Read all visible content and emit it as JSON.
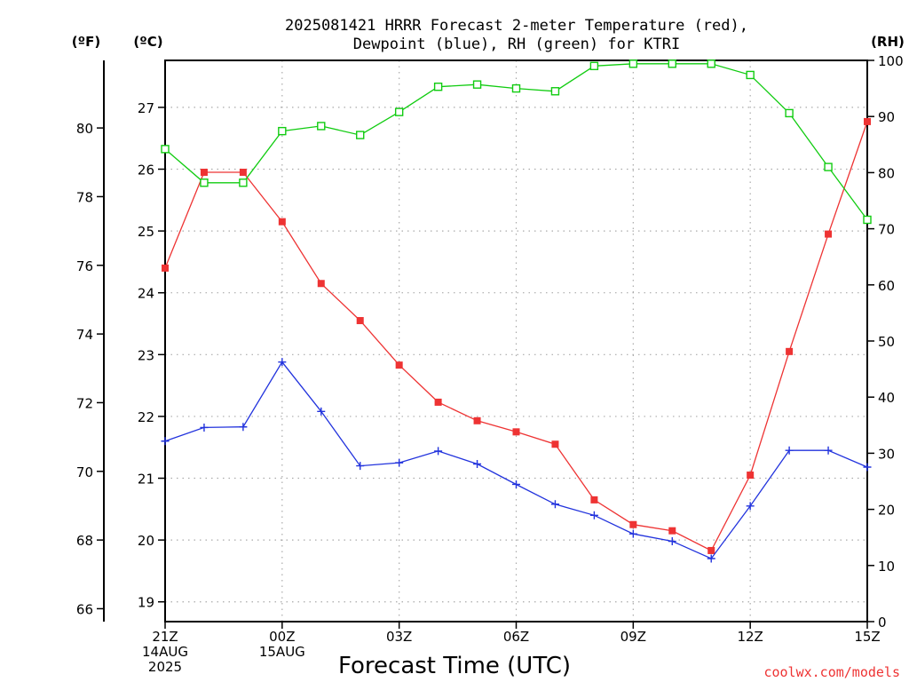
{
  "chart_data": {
    "type": "line",
    "title": [
      "2025081421 HRRR Forecast 2-meter Temperature (red),",
      "Dewpoint (blue), RH (green) for KTRI"
    ],
    "xlabel": "Forecast Time (UTC)",
    "unit_labels": {
      "fahrenheit": "(ºF)",
      "celsius": "(ºC)",
      "rh": "(RH)"
    },
    "credit": "coolwx.com/models",
    "grid": true,
    "x": [
      0,
      1,
      2,
      3,
      4,
      5,
      6,
      7,
      8,
      9,
      10,
      11,
      12,
      13,
      14,
      15,
      16,
      17,
      18
    ],
    "x_ticks": [
      {
        "i": 0,
        "lines": [
          "21Z",
          "14AUG",
          "2025"
        ]
      },
      {
        "i": 3,
        "lines": [
          "00Z",
          "15AUG"
        ]
      },
      {
        "i": 6,
        "lines": [
          "03Z"
        ]
      },
      {
        "i": 9,
        "lines": [
          "06Z"
        ]
      },
      {
        "i": 12,
        "lines": [
          "09Z"
        ]
      },
      {
        "i": 15,
        "lines": [
          "12Z"
        ]
      },
      {
        "i": 18,
        "lines": [
          "15Z"
        ]
      }
    ],
    "y_celsius": {
      "ylim": [
        18.68,
        27.76
      ],
      "ticks": [
        19,
        20,
        21,
        22,
        23,
        24,
        25,
        26,
        27
      ]
    },
    "y_fahrenheit": {
      "ticks": [
        66,
        68,
        70,
        72,
        74,
        76,
        78,
        80
      ]
    },
    "y_rh": {
      "ylim": [
        0,
        100
      ],
      "ticks": [
        0,
        10,
        20,
        30,
        40,
        50,
        60,
        70,
        80,
        90,
        100
      ]
    },
    "series": [
      {
        "name": "Temperature",
        "axis": "celsius",
        "color": "#ee3333",
        "marker": "filled-square",
        "values": [
          24.4,
          25.95,
          25.95,
          25.15,
          24.15,
          23.55,
          22.83,
          22.23,
          21.93,
          21.75,
          21.55,
          20.65,
          20.25,
          20.15,
          19.83,
          21.05,
          23.05,
          24.95,
          26.77
        ]
      },
      {
        "name": "Dewpoint",
        "axis": "celsius",
        "color": "#2233dd",
        "marker": "plus",
        "values": [
          21.6,
          21.82,
          21.83,
          22.88,
          22.08,
          21.2,
          21.25,
          21.44,
          21.23,
          20.9,
          20.58,
          20.4,
          20.1,
          19.98,
          19.7,
          20.55,
          21.45,
          21.45,
          21.18
        ]
      },
      {
        "name": "RH",
        "axis": "rh",
        "color": "#11cc11",
        "marker": "open-square",
        "values": [
          84.2,
          78.2,
          78.2,
          87.4,
          88.3,
          86.7,
          90.8,
          95.3,
          95.7,
          95.0,
          94.5,
          99.0,
          99.4,
          99.4,
          99.4,
          97.4,
          90.6,
          81.0,
          71.6
        ]
      }
    ]
  }
}
